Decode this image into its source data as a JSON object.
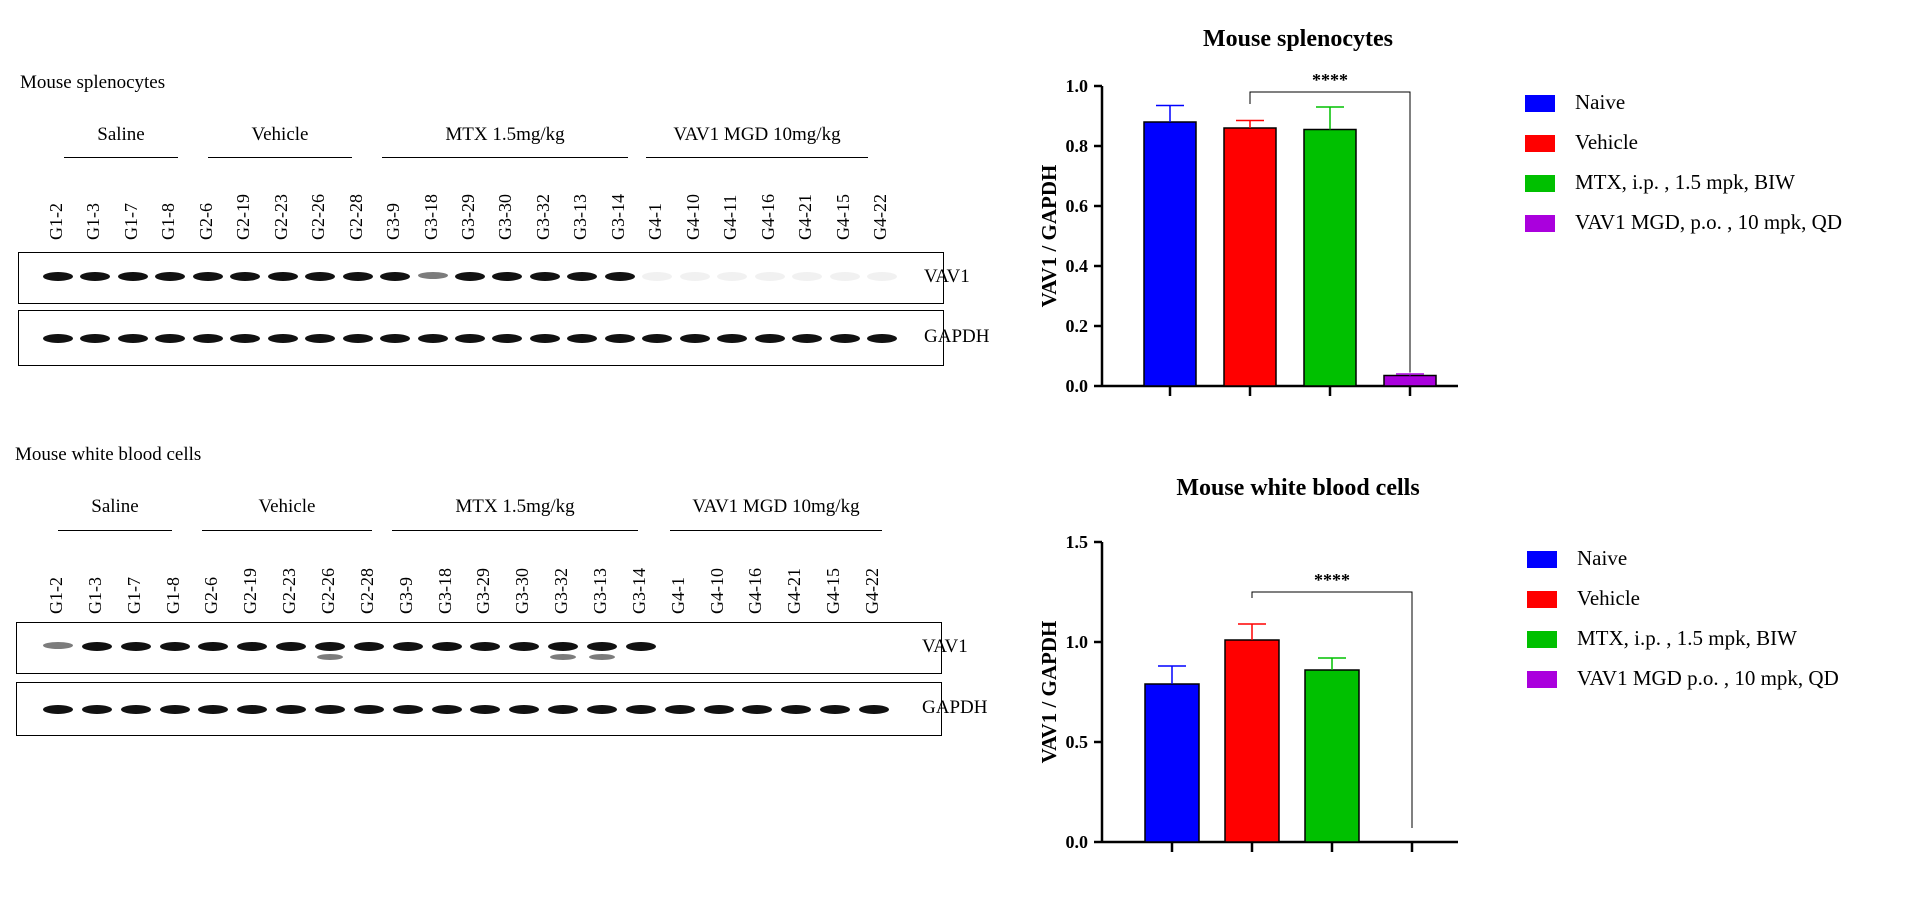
{
  "blots": [
    {
      "title": "Mouse splenocytes",
      "groups": [
        "Saline",
        "Vehicle",
        "MTX  1.5mg/kg",
        "VAV1 MGD  10mg/kg"
      ],
      "lanes": [
        "G1-2",
        "G1-3",
        "G1-7",
        "G1-8",
        "G2-6",
        "G2-19",
        "G2-23",
        "G2-26",
        "G2-28",
        "G3-9",
        "G3-18",
        "G3-29",
        "G3-30",
        "G3-32",
        "G3-13",
        "G3-14",
        "G4-1",
        "G4-10",
        "G4-11",
        "G4-16",
        "G4-21",
        "G4-15",
        "G4-22"
      ],
      "proteins": [
        "VAV1",
        "GAPDH"
      ]
    },
    {
      "title": "Mouse white blood cells",
      "groups": [
        "Saline",
        "Vehicle",
        "MTX  1.5mg/kg",
        "VAV1 MGD  10mg/kg"
      ],
      "lanes": [
        "G1-2",
        "G1-3",
        "G1-7",
        "G1-8",
        "G2-6",
        "G2-19",
        "G2-23",
        "G2-26",
        "G2-28",
        "G3-9",
        "G3-18",
        "G3-29",
        "G3-30",
        "G3-32",
        "G3-13",
        "G3-14",
        "G4-1",
        "G4-10",
        "G4-16",
        "G4-21",
        "G4-15",
        "G4-22"
      ],
      "proteins": [
        "VAV1",
        "GAPDH"
      ]
    }
  ],
  "chart_data": [
    {
      "type": "bar",
      "title": "Mouse splenocytes",
      "ylabel": "VAV1 / GAPDH",
      "xlabel": "",
      "ylim": [
        0,
        1.0
      ],
      "yticks": [
        "0.0",
        "0.2",
        "0.4",
        "0.6",
        "0.8",
        "1.0"
      ],
      "categories": [
        "Naive",
        "Vehicle",
        "MTX, i.p. , 1.5 mpk, BIW",
        "VAV1 MGD, p.o. , 10 mpk, QD"
      ],
      "values": [
        0.88,
        0.86,
        0.855,
        0.035
      ],
      "errors": [
        0.055,
        0.025,
        0.075,
        0.005
      ],
      "colors": [
        "#0000FF",
        "#FF0000",
        "#00C000",
        "#AA00DD"
      ],
      "significance": {
        "label": "****",
        "from": 1,
        "to": 3
      },
      "legend": "right"
    },
    {
      "type": "bar",
      "title": "Mouse white blood cells",
      "ylabel": "VAV1 / GAPDH",
      "xlabel": "",
      "ylim": [
        0,
        1.5
      ],
      "yticks": [
        "0.0",
        "0.5",
        "1.0",
        "1.5"
      ],
      "categories": [
        "Naive",
        "Vehicle",
        "MTX, i.p. , 1.5 mpk, BIW",
        "VAV1 MGD p.o. , 10 mpk, QD"
      ],
      "values": [
        0.79,
        1.01,
        0.86,
        0.0
      ],
      "errors": [
        0.09,
        0.08,
        0.06,
        0.0
      ],
      "colors": [
        "#0000FF",
        "#FF0000",
        "#00C000",
        "#AA00DD"
      ],
      "significance": {
        "label": "****",
        "from": 1,
        "to": 3
      },
      "legend": "right"
    }
  ]
}
